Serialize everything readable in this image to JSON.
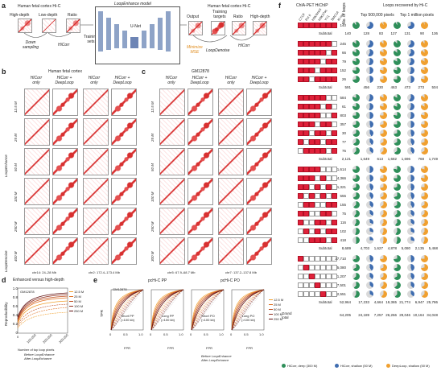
{
  "panel_labels": {
    "a": "a",
    "b": "b",
    "c": "c",
    "d": "d",
    "e": "e",
    "f": "f"
  },
  "a": {
    "title_left": "Human fetal cortex Hi-C",
    "maps": [
      "High-depth",
      "Low-depth",
      "Ratio"
    ],
    "down_sampling": "Down\nsampling",
    "hicorr": "HiCorr",
    "model_title": "LoopEnhance model",
    "unet": "U-Net",
    "training_sets": "Training\nsets",
    "output": "Output",
    "training_targets": "Training\ntargets",
    "ratio2": "Ratio",
    "high_depth2": "High-depth",
    "title_right": "Human fetal cortex Hi-C",
    "minimize": "Minimize\nMSE",
    "loopdenoise": "LoopDenoise",
    "hicorr2": "HiCorr"
  },
  "b": {
    "title": "Human fetal cortex",
    "cols": [
      "HiCorr\nonly",
      "HiCorr +\nDeepLoop",
      "HiCorr\nonly",
      "HiCorr +\nDeepLoop"
    ],
    "rows": [
      "12.5 M",
      "25 M",
      "50 M",
      "100 M",
      "250 M",
      "400 M"
    ],
    "left_groups": [
      "LoopEnhance",
      "LoopDenoise"
    ],
    "regions": [
      "chr14: 24–28 Mb",
      "chr2: 172.4–173.4 Mb"
    ]
  },
  "c": {
    "title": "GM12878",
    "cols": [
      "HiCorr\nonly",
      "HiCorr +\nDeepLoop",
      "HiCorr\nonly",
      "HiCorr +\nDeepLoop"
    ],
    "rows": [
      "12.5 M",
      "25 M",
      "50 M",
      "100 M",
      "250 M",
      "300 M"
    ],
    "regions": [
      "chr5: 67.9–68.7 Mb",
      "chr7: 137.2–137.8 Mb"
    ]
  },
  "d": {
    "title": "Enhanced versus high-depth",
    "subtitle": "GM12878",
    "ylabel": "Reproducibility",
    "xlabel": "Number of top loop pixels",
    "xticks": [
      "0",
      "100,000",
      "200,000",
      "300,000"
    ],
    "yticks": [
      "0",
      "0.2",
      "0.4",
      "0.6",
      "0.8",
      "1.0"
    ],
    "legend": [
      "12.5 M",
      "25 M",
      "50 M",
      "100 M",
      "250 M"
    ],
    "line_legend": [
      "Before LoopEnhance",
      "After LoopEnhance"
    ]
  },
  "e": {
    "subtitle": "GM12878",
    "titles": [
      "pcHi-C PP",
      "pcHi-C PO"
    ],
    "panels": [
      "Short PP\n(<100 kb)",
      "Long PP\n(>100 kb)",
      "Short PO\n(<100 kb)",
      "Long PO\n(>100 kb)"
    ],
    "ylabel": "TPR",
    "xlabel": "FPR",
    "ticks": [
      "0",
      "0.5",
      "1.0"
    ],
    "legend": [
      "12.5 M",
      "25 M",
      "50 M",
      "100 M",
      "250 M"
    ],
    "line_legend": [
      "Before LoopEnhance",
      "After LoopEnhance"
    ]
  },
  "f": {
    "chia_title": "ChIA-PET HiChIP",
    "factors": [
      "CTCF",
      "Pol II",
      "H3K4me3",
      "H3K27ac",
      "YY1",
      "SMC1A",
      "Ki-ras"
    ],
    "col_no_loops": "No. of loops",
    "loops_title": "Loops recovered by Hi-C",
    "top_a": "Top 500,000 pixels",
    "top_b": "Top 1 million pixels",
    "top_num_a": [
      "140",
      "128",
      "83",
      "127"
    ],
    "top_num_b": [
      "131",
      "90",
      "136"
    ],
    "groups": [
      {
        "counts": [
          "140"
        ],
        "subtotal": [
          "140",
          "128",
          "83",
          "127",
          "131",
          "90",
          "136"
        ]
      },
      {
        "counts": [
          "245",
          "66",
          "79",
          "152",
          "26"
        ],
        "subtotal": [
          "591",
          "456",
          "230",
          "463",
          "473",
          "273",
          "504"
        ]
      },
      {
        "counts": [
          "584",
          "61",
          "803",
          "357",
          "30",
          "77",
          "75"
        ],
        "subtotal": [
          "2,121",
          "1,649",
          "613",
          "1,682",
          "1,696",
          "768",
          "1,749"
        ]
      },
      {
        "counts": [
          "1,614",
          "4,366",
          "1,321",
          "555",
          "155",
          "75",
          "116",
          "102",
          "418"
        ],
        "subtotal": [
          "8,689",
          "4,703",
          "1,627",
          "4,878",
          "5,080",
          "2,135",
          "5,468"
        ]
      },
      {
        "counts": [
          "37,710",
          "5,080",
          "1,207",
          "7,501",
          "2,551"
        ],
        "subtotal": [
          "52,964",
          "17,233",
          "4,664",
          "19,365",
          "21,774",
          "6,947",
          "25,786"
        ]
      }
    ],
    "subtotal_label": "Subtotal",
    "grand_label": "Grand\ntotal",
    "grand_total": [
      "64,205",
      "24,189",
      "7,257",
      "26,266",
      "29,046",
      "10,164",
      "34,048"
    ],
    "legend": [
      "HiCorr, deep (300 M)",
      "HiCorr, shallow (50 M)",
      "DeepLoop, shallow (50 M)"
    ],
    "colors": {
      "green": "#2f8f5a",
      "blue": "#3f6db0",
      "orange": "#f0a030",
      "grey": "#d9d9d9",
      "red": "#e0213a"
    }
  }
}
